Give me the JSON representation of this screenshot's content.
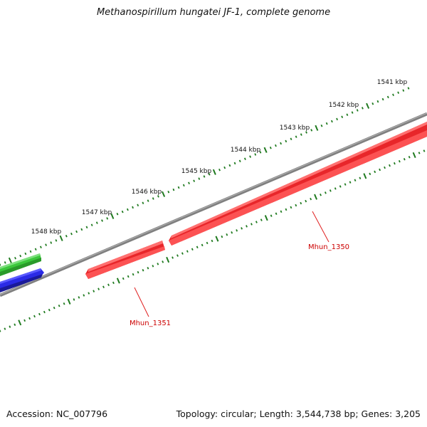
{
  "title": "Methanospirillum hungatei JF-1, complete genome",
  "footer": {
    "accession": "Accession: NC_007796",
    "summary": "Topology: circular; Length: 3,544,738 bp; Genes: 3,205"
  },
  "scale_labels": [
    "1541 kbp",
    "1542 kbp",
    "1543 kbp",
    "1544 kbp",
    "1545 kbp",
    "1546 kbp",
    "1547 kbp",
    "1548 kbp"
  ],
  "genes": [
    {
      "label": "Mhun_1350",
      "strand": "reverse",
      "color": "#e8262a"
    },
    {
      "label": "Mhun_1351",
      "strand": "reverse",
      "color": "#e8262a"
    }
  ],
  "tracks": [
    {
      "name": "green-feature",
      "color": "#3cc83c"
    },
    {
      "name": "blue-feature",
      "color": "#2a2ae6"
    }
  ],
  "colors": {
    "backbone": "#808080",
    "ticks": "#1f7a1f",
    "gene_label": "#cc0000",
    "leader": "#e02020"
  }
}
